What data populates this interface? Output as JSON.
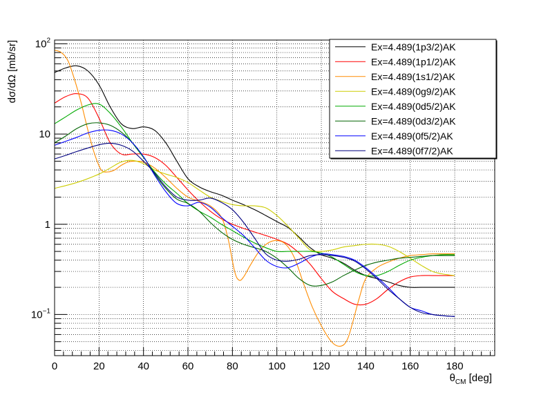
{
  "chart_data": {
    "type": "line",
    "title": "",
    "xlabel": {
      "main": "θ",
      "sub": "CM",
      "rest": " [deg]"
    },
    "ylabel": "dσ/dΩ [mb/sr]",
    "xlim": [
      0,
      198
    ],
    "ylim": [
      0.035,
      110
    ],
    "yscale": "log",
    "grid": true,
    "legend": "top-right",
    "xticks": [
      0,
      20,
      40,
      60,
      80,
      100,
      120,
      140,
      160,
      180
    ],
    "xtick_labels": [
      "0",
      "20",
      "40",
      "60",
      "80",
      "100",
      "120",
      "140",
      "160",
      "180"
    ],
    "ytick_labels": [
      {
        "base": "10",
        "exp": "−1",
        "value": 0.1
      },
      {
        "base": "1",
        "exp": "",
        "value": 1
      },
      {
        "base": "10",
        "exp": "",
        "value": 10
      },
      {
        "base": "10",
        "exp": "2",
        "value": 100
      }
    ],
    "series": [
      {
        "name": "Ex=4.489(1p3/2)AK",
        "color": "#000000",
        "x": [
          0,
          5,
          10,
          15,
          20,
          25,
          30,
          35,
          40,
          45,
          50,
          55,
          60,
          65,
          70,
          75,
          80,
          85,
          90,
          95,
          100,
          105,
          110,
          115,
          120,
          125,
          130,
          135,
          140,
          145,
          150,
          155,
          160,
          165,
          170,
          175,
          180
        ],
        "y": [
          48,
          54,
          57,
          50,
          35,
          20,
          13,
          11.5,
          12,
          11,
          8,
          5,
          3.2,
          2.6,
          2.3,
          2.1,
          1.85,
          1.65,
          1.45,
          1.25,
          1.07,
          0.92,
          0.72,
          0.55,
          0.46,
          0.42,
          0.37,
          0.31,
          0.27,
          0.25,
          0.23,
          0.21,
          0.2,
          0.2,
          0.2,
          0.2,
          0.2
        ]
      },
      {
        "name": "Ex=4.489(1p1/2)AK",
        "color": "#ff0000",
        "x": [
          0,
          5,
          10,
          15,
          20,
          25,
          30,
          35,
          40,
          45,
          50,
          55,
          60,
          65,
          70,
          75,
          80,
          85,
          90,
          95,
          100,
          105,
          110,
          115,
          120,
          125,
          130,
          135,
          140,
          145,
          150,
          155,
          160,
          165,
          170,
          175,
          180
        ],
        "y": [
          22,
          26,
          28,
          25,
          15,
          8,
          6,
          6,
          6,
          5.5,
          4.5,
          3.3,
          2.4,
          1.8,
          1.4,
          1.15,
          1,
          0.9,
          0.82,
          0.75,
          0.68,
          0.6,
          0.48,
          0.36,
          0.25,
          0.18,
          0.15,
          0.13,
          0.13,
          0.15,
          0.19,
          0.23,
          0.26,
          0.27,
          0.27,
          0.27,
          0.27
        ]
      },
      {
        "name": "Ex=4.489(1s1/2)AK",
        "color": "#ff8c00",
        "x": [
          0,
          3,
          6,
          9,
          12,
          15,
          18,
          21,
          24,
          27,
          30,
          33,
          36,
          40,
          45,
          50,
          55,
          60,
          65,
          70,
          75,
          78,
          81,
          83,
          85,
          88,
          92,
          96,
          100,
          104,
          108,
          112,
          116,
          120,
          124,
          127,
          130,
          132,
          134,
          137,
          140,
          145,
          150,
          155,
          160,
          165,
          170,
          175,
          180
        ],
        "y": [
          85,
          80,
          65,
          40,
          22,
          11,
          6,
          4,
          3.8,
          4,
          4.5,
          4.9,
          5,
          4.9,
          4.2,
          3.3,
          2.5,
          2,
          1.8,
          1.6,
          1.2,
          0.7,
          0.3,
          0.24,
          0.26,
          0.35,
          0.5,
          0.62,
          0.66,
          0.6,
          0.42,
          0.22,
          0.12,
          0.075,
          0.052,
          0.045,
          0.046,
          0.055,
          0.08,
          0.15,
          0.25,
          0.33,
          0.38,
          0.42,
          0.45,
          0.46,
          0.47,
          0.47,
          0.47
        ]
      },
      {
        "name": "Ex=4.489(0g9/2)AK",
        "color": "#cccc00",
        "x": [
          0,
          10,
          20,
          25,
          30,
          35,
          40,
          45,
          50,
          55,
          60,
          65,
          70,
          75,
          80,
          85,
          90,
          95,
          100,
          105,
          110,
          115,
          120,
          125,
          130,
          135,
          140,
          145,
          150,
          155,
          160,
          165,
          170,
          175,
          180
        ],
        "y": [
          2.5,
          2.9,
          3.6,
          4.2,
          4.9,
          5.1,
          4.7,
          4,
          3.6,
          3.3,
          2.9,
          2.4,
          2,
          1.8,
          1.65,
          1.6,
          1.6,
          1.52,
          1.25,
          0.95,
          0.7,
          0.52,
          0.5,
          0.52,
          0.56,
          0.58,
          0.6,
          0.6,
          0.57,
          0.5,
          0.42,
          0.35,
          0.3,
          0.28,
          0.27
        ]
      },
      {
        "name": "Ex=4.489(0d5/2)AK",
        "color": "#00aa00",
        "x": [
          0,
          5,
          10,
          15,
          20,
          25,
          30,
          35,
          40,
          45,
          50,
          55,
          60,
          65,
          70,
          75,
          80,
          85,
          90,
          95,
          100,
          105,
          110,
          115,
          120,
          125,
          130,
          135,
          140,
          145,
          150,
          155,
          160,
          165,
          170,
          175,
          180
        ],
        "y": [
          13,
          15.5,
          18.5,
          21,
          21.5,
          17,
          12,
          8,
          5.5,
          3.8,
          2.8,
          2.2,
          1.7,
          1.4,
          1.2,
          1,
          0.85,
          0.72,
          0.62,
          0.55,
          0.5,
          0.5,
          0.5,
          0.5,
          0.48,
          0.43,
          0.36,
          0.3,
          0.27,
          0.27,
          0.3,
          0.35,
          0.4,
          0.43,
          0.45,
          0.46,
          0.46
        ]
      },
      {
        "name": "Ex=4.489(0d3/2)AK",
        "color": "#006400",
        "x": [
          0,
          5,
          10,
          15,
          20,
          25,
          30,
          35,
          40,
          45,
          50,
          55,
          60,
          65,
          70,
          75,
          80,
          85,
          90,
          95,
          100,
          105,
          110,
          115,
          120,
          125,
          130,
          135,
          140,
          145,
          150,
          155,
          160,
          165,
          170,
          175,
          180
        ],
        "y": [
          8,
          9.5,
          11.5,
          13,
          13.3,
          12.5,
          10.5,
          8,
          5.6,
          3.6,
          2.5,
          1.9,
          1.7,
          1.4,
          1.05,
          0.82,
          0.68,
          0.6,
          0.55,
          0.5,
          0.42,
          0.33,
          0.25,
          0.21,
          0.21,
          0.23,
          0.27,
          0.31,
          0.35,
          0.38,
          0.4,
          0.42,
          0.43,
          0.44,
          0.45,
          0.45,
          0.45
        ]
      },
      {
        "name": "Ex=4.489(0f5/2)AK",
        "color": "#0000ff",
        "x": [
          0,
          5,
          10,
          15,
          20,
          25,
          30,
          35,
          40,
          45,
          50,
          55,
          60,
          65,
          70,
          75,
          80,
          85,
          90,
          95,
          100,
          105,
          110,
          115,
          120,
          125,
          130,
          135,
          140,
          145,
          150,
          155,
          160,
          165,
          170,
          175,
          180
        ],
        "y": [
          7.5,
          8.3,
          9.2,
          10.3,
          11,
          11,
          10,
          8,
          5.6,
          3.5,
          2.3,
          1.7,
          1.6,
          1.75,
          1.55,
          1.2,
          0.95,
          0.75,
          0.55,
          0.4,
          0.34,
          0.33,
          0.37,
          0.43,
          0.47,
          0.46,
          0.44,
          0.4,
          0.33,
          0.26,
          0.2,
          0.15,
          0.12,
          0.11,
          0.1,
          0.097,
          0.095
        ]
      },
      {
        "name": "Ex=4.489(0f7/2)AK",
        "color": "#000080",
        "x": [
          0,
          5,
          10,
          15,
          20,
          25,
          30,
          35,
          40,
          45,
          50,
          55,
          60,
          65,
          70,
          75,
          80,
          85,
          90,
          95,
          100,
          105,
          110,
          115,
          120,
          125,
          130,
          135,
          140,
          145,
          150,
          155,
          160,
          165,
          170,
          175,
          180
        ],
        "y": [
          5.3,
          5.8,
          6.4,
          7,
          7.6,
          7.9,
          7.5,
          6.5,
          5,
          3.7,
          2.6,
          2,
          1.85,
          1.85,
          1.95,
          1.75,
          1.45,
          1.05,
          0.7,
          0.47,
          0.4,
          0.39,
          0.41,
          0.45,
          0.46,
          0.45,
          0.43,
          0.39,
          0.32,
          0.25,
          0.19,
          0.15,
          0.12,
          0.105,
          0.1,
          0.097,
          0.095
        ]
      }
    ]
  }
}
